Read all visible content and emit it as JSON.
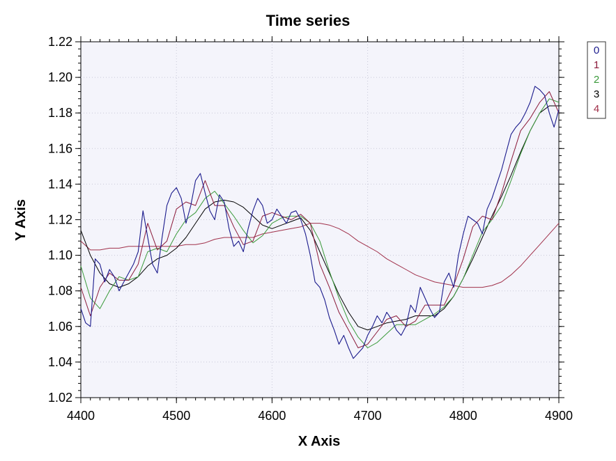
{
  "chart_data": {
    "type": "line",
    "title": "Time series",
    "xlabel": "X Axis",
    "ylabel": "Y Axis",
    "xlim": [
      4400,
      4900
    ],
    "ylim": [
      1.02,
      1.22
    ],
    "x_ticks": [
      "4400",
      "4500",
      "4600",
      "4700",
      "4800",
      "4900"
    ],
    "y_ticks": [
      "1.02",
      "1.04",
      "1.06",
      "1.08",
      "1.10",
      "1.12",
      "1.14",
      "1.16",
      "1.18",
      "1.20",
      "1.22"
    ],
    "grid": true,
    "legend_position": "top-right outside",
    "series": [
      {
        "name": "0",
        "color": "#1a1a8c",
        "x": [
          4400,
          4405,
          4410,
          4415,
          4420,
          4425,
          4430,
          4435,
          4440,
          4445,
          4450,
          4455,
          4460,
          4465,
          4470,
          4475,
          4480,
          4485,
          4490,
          4495,
          4500,
          4505,
          4510,
          4515,
          4520,
          4525,
          4530,
          4535,
          4540,
          4545,
          4550,
          4555,
          4560,
          4565,
          4570,
          4575,
          4580,
          4585,
          4590,
          4595,
          4600,
          4605,
          4610,
          4615,
          4620,
          4625,
          4630,
          4635,
          4640,
          4645,
          4650,
          4655,
          4660,
          4665,
          4670,
          4675,
          4680,
          4685,
          4690,
          4695,
          4700,
          4705,
          4710,
          4715,
          4720,
          4725,
          4730,
          4735,
          4740,
          4745,
          4750,
          4755,
          4760,
          4765,
          4770,
          4775,
          4780,
          4785,
          4790,
          4795,
          4800,
          4805,
          4810,
          4815,
          4820,
          4825,
          4830,
          4835,
          4840,
          4845,
          4850,
          4855,
          4860,
          4865,
          4870,
          4875,
          4880,
          4885,
          4890,
          4895,
          4900
        ],
        "y": [
          1.07,
          1.062,
          1.06,
          1.098,
          1.095,
          1.085,
          1.092,
          1.088,
          1.08,
          1.085,
          1.09,
          1.095,
          1.102,
          1.125,
          1.11,
          1.095,
          1.09,
          1.11,
          1.128,
          1.135,
          1.138,
          1.132,
          1.118,
          1.128,
          1.142,
          1.146,
          1.135,
          1.125,
          1.12,
          1.134,
          1.13,
          1.115,
          1.105,
          1.108,
          1.102,
          1.115,
          1.125,
          1.132,
          1.128,
          1.118,
          1.12,
          1.126,
          1.122,
          1.118,
          1.124,
          1.125,
          1.12,
          1.112,
          1.1,
          1.085,
          1.082,
          1.075,
          1.065,
          1.058,
          1.05,
          1.055,
          1.048,
          1.042,
          1.045,
          1.048,
          1.055,
          1.06,
          1.066,
          1.062,
          1.068,
          1.064,
          1.058,
          1.055,
          1.06,
          1.072,
          1.068,
          1.082,
          1.076,
          1.07,
          1.065,
          1.068,
          1.085,
          1.09,
          1.082,
          1.1,
          1.112,
          1.122,
          1.12,
          1.118,
          1.112,
          1.126,
          1.132,
          1.14,
          1.148,
          1.158,
          1.168,
          1.172,
          1.175,
          1.18,
          1.186,
          1.195,
          1.193,
          1.19,
          1.18,
          1.172,
          1.182
        ]
      },
      {
        "name": "1",
        "color": "#8b1a3a",
        "x": [
          4400,
          4410,
          4420,
          4430,
          4440,
          4450,
          4460,
          4470,
          4480,
          4490,
          4500,
          4510,
          4520,
          4530,
          4540,
          4550,
          4560,
          4570,
          4580,
          4590,
          4600,
          4610,
          4620,
          4630,
          4640,
          4650,
          4660,
          4670,
          4680,
          4690,
          4700,
          4710,
          4720,
          4730,
          4740,
          4750,
          4760,
          4770,
          4780,
          4790,
          4800,
          4810,
          4820,
          4830,
          4840,
          4850,
          4860,
          4870,
          4880,
          4890,
          4900
        ],
        "y": [
          1.082,
          1.066,
          1.082,
          1.09,
          1.086,
          1.086,
          1.095,
          1.118,
          1.103,
          1.108,
          1.126,
          1.13,
          1.128,
          1.142,
          1.128,
          1.128,
          1.116,
          1.106,
          1.108,
          1.122,
          1.124,
          1.122,
          1.12,
          1.123,
          1.118,
          1.095,
          1.082,
          1.068,
          1.058,
          1.048,
          1.05,
          1.057,
          1.064,
          1.066,
          1.06,
          1.063,
          1.072,
          1.072,
          1.072,
          1.083,
          1.098,
          1.116,
          1.122,
          1.12,
          1.135,
          1.153,
          1.17,
          1.177,
          1.186,
          1.192,
          1.18
        ]
      },
      {
        "name": "2",
        "color": "#3a9a3a",
        "x": [
          4400,
          4410,
          4420,
          4430,
          4440,
          4450,
          4460,
          4470,
          4480,
          4490,
          4500,
          4510,
          4520,
          4530,
          4540,
          4550,
          4560,
          4570,
          4580,
          4590,
          4600,
          4610,
          4620,
          4630,
          4640,
          4650,
          4660,
          4670,
          4680,
          4690,
          4700,
          4710,
          4720,
          4730,
          4740,
          4750,
          4760,
          4770,
          4780,
          4790,
          4800,
          4810,
          4820,
          4830,
          4840,
          4850,
          4860,
          4870,
          4880,
          4890,
          4900
        ],
        "y": [
          1.094,
          1.076,
          1.07,
          1.08,
          1.088,
          1.086,
          1.088,
          1.102,
          1.104,
          1.102,
          1.112,
          1.12,
          1.124,
          1.132,
          1.136,
          1.129,
          1.122,
          1.114,
          1.107,
          1.111,
          1.118,
          1.121,
          1.122,
          1.122,
          1.118,
          1.108,
          1.091,
          1.076,
          1.063,
          1.054,
          1.048,
          1.051,
          1.056,
          1.061,
          1.061,
          1.061,
          1.064,
          1.067,
          1.071,
          1.077,
          1.087,
          1.1,
          1.113,
          1.12,
          1.128,
          1.142,
          1.157,
          1.17,
          1.18,
          1.188,
          1.186
        ]
      },
      {
        "name": "3",
        "color": "#000000",
        "x": [
          4400,
          4410,
          4420,
          4430,
          4440,
          4450,
          4460,
          4470,
          4480,
          4490,
          4500,
          4510,
          4520,
          4530,
          4540,
          4550,
          4560,
          4570,
          4580,
          4590,
          4600,
          4610,
          4620,
          4630,
          4640,
          4650,
          4660,
          4670,
          4680,
          4690,
          4700,
          4710,
          4720,
          4730,
          4740,
          4750,
          4760,
          4770,
          4780,
          4790,
          4800,
          4810,
          4820,
          4830,
          4840,
          4850,
          4860,
          4870,
          4880,
          4890,
          4900
        ],
        "y": [
          1.114,
          1.1,
          1.09,
          1.084,
          1.082,
          1.084,
          1.088,
          1.094,
          1.098,
          1.1,
          1.104,
          1.11,
          1.118,
          1.126,
          1.13,
          1.131,
          1.13,
          1.127,
          1.122,
          1.117,
          1.115,
          1.117,
          1.119,
          1.121,
          1.114,
          1.102,
          1.09,
          1.078,
          1.068,
          1.06,
          1.058,
          1.06,
          1.062,
          1.063,
          1.064,
          1.066,
          1.066,
          1.066,
          1.07,
          1.077,
          1.087,
          1.098,
          1.11,
          1.122,
          1.133,
          1.145,
          1.158,
          1.17,
          1.18,
          1.184,
          1.184
        ]
      },
      {
        "name": "4",
        "color": "#a0304a",
        "x": [
          4400,
          4410,
          4420,
          4430,
          4440,
          4450,
          4460,
          4470,
          4480,
          4490,
          4500,
          4510,
          4520,
          4530,
          4540,
          4550,
          4560,
          4570,
          4580,
          4590,
          4600,
          4610,
          4620,
          4630,
          4640,
          4650,
          4660,
          4670,
          4680,
          4690,
          4700,
          4710,
          4720,
          4730,
          4740,
          4750,
          4760,
          4770,
          4780,
          4790,
          4800,
          4810,
          4820,
          4830,
          4840,
          4850,
          4860,
          4870,
          4880,
          4890,
          4900
        ],
        "y": [
          1.108,
          1.103,
          1.103,
          1.104,
          1.104,
          1.105,
          1.105,
          1.105,
          1.105,
          1.105,
          1.105,
          1.106,
          1.106,
          1.107,
          1.109,
          1.11,
          1.11,
          1.11,
          1.11,
          1.112,
          1.113,
          1.114,
          1.115,
          1.116,
          1.118,
          1.118,
          1.117,
          1.115,
          1.112,
          1.108,
          1.105,
          1.102,
          1.098,
          1.095,
          1.092,
          1.089,
          1.087,
          1.085,
          1.084,
          1.083,
          1.082,
          1.082,
          1.082,
          1.083,
          1.085,
          1.089,
          1.094,
          1.1,
          1.106,
          1.112,
          1.118
        ]
      }
    ]
  }
}
